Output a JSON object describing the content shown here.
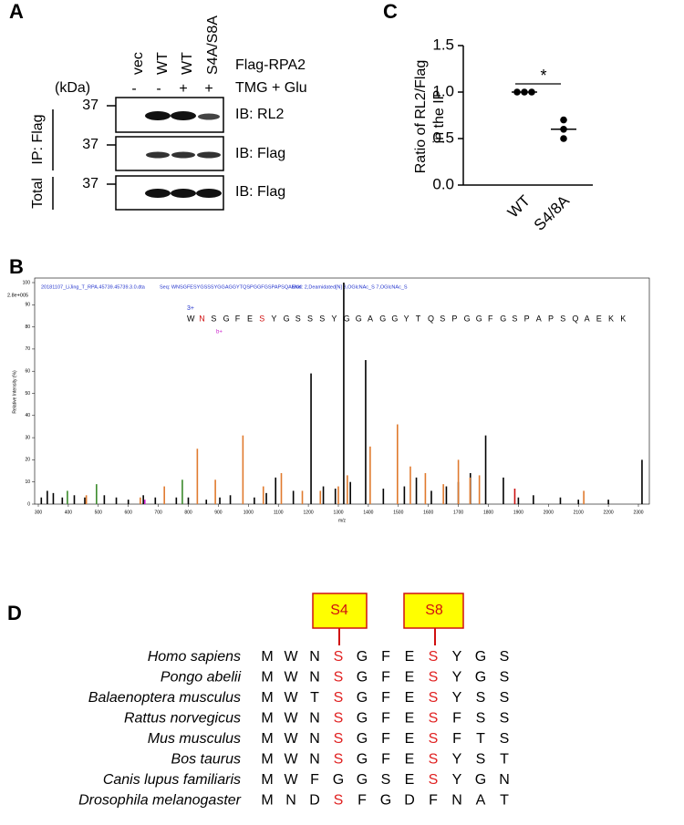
{
  "panel_labels": [
    "A",
    "B",
    "C",
    "D"
  ],
  "panel_a": {
    "lanes": [
      "vec",
      "WT",
      "WT",
      "S4A/S8A"
    ],
    "lanes_label": "Flag-RPA2",
    "treatment": [
      "-",
      "-",
      "+",
      "+"
    ],
    "treatment_label": "TMG + Glu",
    "kda": "(kDa)",
    "markers": [
      "37",
      "37",
      "37"
    ],
    "blots": [
      "IB: RL2",
      "IB: Flag",
      "IB: Flag"
    ],
    "groups": [
      "IP: Flag",
      "Total"
    ]
  },
  "panel_b": {
    "header": [
      "20181107_LiJing_T_RPA.45739.45739.3.0.dta",
      "Seq: WNSGFESYGSSSYGGAGGYTQSPGGFGSPAPSQAEKK",
      "Mod: 2,Deamidated[N] 3,OGlcNAc_S 7,OGlcNAc_S"
    ],
    "scale": "2.8e+005",
    "charge": "3+",
    "ion": "b+",
    "sequence": [
      "W",
      "N",
      "S",
      "G",
      "F",
      "E",
      "S",
      "Y",
      "G",
      "S",
      "S",
      "S",
      "Y",
      "G",
      "G",
      "A",
      "G",
      "G",
      "Y",
      "T",
      "Q",
      "S",
      "P",
      "G",
      "G",
      "F",
      "G",
      "S",
      "P",
      "A",
      "P",
      "S",
      "Q",
      "A",
      "E",
      "K",
      "K"
    ],
    "modified": [
      1,
      6
    ],
    "chart_data": {
      "type": "spectrum",
      "xlabel": "m/z",
      "ylabel": "Relative Intensity (%)",
      "xlim": [
        300,
        2350
      ],
      "ylim": [
        0,
        100
      ],
      "xticks": [
        300,
        400,
        500,
        600,
        700,
        800,
        900,
        1000,
        1100,
        1200,
        1300,
        1400,
        1500,
        1600,
        1700,
        1800,
        1900,
        2000,
        2100,
        2200,
        2300
      ],
      "yticks": [
        0,
        10,
        20,
        30,
        40,
        50,
        60,
        70,
        80,
        90,
        100
      ],
      "series": [
        {
          "name": "unassigned",
          "color": "#000000",
          "x": [
            310,
            330,
            350,
            380,
            420,
            455,
            520,
            560,
            600,
            650,
            690,
            760,
            800,
            860,
            905,
            940,
            1020,
            1060,
            1091,
            1150,
            1209,
            1250,
            1290,
            1318,
            1340,
            1391,
            1450,
            1520,
            1560,
            1610,
            1660,
            1700,
            1740,
            1791,
            1850,
            1900,
            1950,
            2040,
            2100,
            2200,
            2312
          ],
          "values": [
            3,
            6,
            5,
            3,
            4,
            3,
            4,
            3,
            2,
            4,
            3,
            3,
            3,
            2,
            3,
            4,
            3,
            5,
            12,
            6,
            59,
            8,
            7,
            100,
            10,
            65,
            7,
            8,
            12,
            6,
            8,
            10,
            14,
            31,
            12,
            3,
            4,
            3,
            2,
            2,
            20
          ]
        },
        {
          "name": "y ions",
          "color": "#e07a2e",
          "x": [
            460,
            640,
            720,
            830,
            890,
            982,
            1050,
            1110,
            1180,
            1240,
            1300,
            1330,
            1406,
            1497,
            1540,
            1590,
            1650,
            1700,
            1739,
            1770,
            2118
          ],
          "values": [
            4,
            3,
            8,
            25,
            11,
            31,
            8,
            14,
            6,
            6,
            8,
            13,
            26,
            36,
            17,
            14,
            9,
            20,
            12,
            13,
            6
          ]
        },
        {
          "name": "b ions",
          "color": "#3a8a2a",
          "x": [
            397,
            494,
            780
          ],
          "values": [
            6,
            9,
            11
          ]
        },
        {
          "name": "precursor",
          "color": "#cc1010",
          "x": [
            1888
          ],
          "values": [
            7
          ]
        },
        {
          "name": "neutral loss",
          "color": "#cc22cc",
          "x": [
            655
          ],
          "values": [
            2
          ]
        }
      ]
    }
  },
  "panel_c": {
    "chart_data": {
      "type": "dot",
      "ylabel": [
        "Ratio of RL2/Flag",
        "in the IP"
      ],
      "categories": [
        "WT",
        "S4/8A"
      ],
      "values": [
        [
          1,
          1,
          1
        ],
        [
          0.7,
          0.6,
          0.5
        ]
      ],
      "means": [
        1,
        0.6
      ],
      "color": "#000000",
      "ylim": [
        0,
        1.5
      ],
      "yticks": [
        {
          "value": 0,
          "label": "0.0"
        },
        0.5,
        {
          "value": 1,
          "label": "1.0"
        },
        1.5
      ],
      "significance": "*"
    }
  },
  "panel_d": {
    "sites": [
      "S4",
      "S8"
    ],
    "highlight_color": "#e02020",
    "rows": [
      {
        "species": "Homo sapiens",
        "residues": [
          "M",
          "W",
          "N",
          "S",
          "G",
          "F",
          "E",
          "S",
          "Y",
          "G",
          "S"
        ],
        "red": [
          3,
          7
        ]
      },
      {
        "species": "Pongo abelii",
        "residues": [
          "M",
          "W",
          "N",
          "S",
          "G",
          "F",
          "E",
          "S",
          "Y",
          "G",
          "S"
        ],
        "red": [
          3,
          7
        ]
      },
      {
        "species": "Balaenoptera musculus",
        "residues": [
          "M",
          "W",
          "T",
          "S",
          "G",
          "F",
          "E",
          "S",
          "Y",
          "S",
          "S"
        ],
        "red": [
          3,
          7
        ]
      },
      {
        "species": "Rattus norvegicus",
        "residues": [
          "M",
          "W",
          "N",
          "S",
          "G",
          "F",
          "E",
          "S",
          "F",
          "S",
          "S"
        ],
        "red": [
          3,
          7
        ]
      },
      {
        "species": "Mus musculus",
        "residues": [
          "M",
          "W",
          "N",
          "S",
          "G",
          "F",
          "E",
          "S",
          "F",
          "T",
          "S"
        ],
        "red": [
          3,
          7
        ]
      },
      {
        "species": "Bos taurus",
        "residues": [
          "M",
          "W",
          "N",
          "S",
          "G",
          "F",
          "E",
          "S",
          "Y",
          "S",
          "T"
        ],
        "red": [
          3,
          7
        ]
      },
      {
        "species": "Canis lupus familiaris",
        "residues": [
          "M",
          "W",
          "F",
          "G",
          "G",
          "S",
          "E",
          "S",
          "Y",
          "G",
          "N"
        ],
        "red": [
          7
        ]
      },
      {
        "species": "Drosophila melanogaster",
        "residues": [
          "M",
          "N",
          "D",
          "S",
          "F",
          "G",
          "D",
          "F",
          "N",
          "A",
          "T"
        ],
        "red": [
          3
        ]
      }
    ]
  }
}
